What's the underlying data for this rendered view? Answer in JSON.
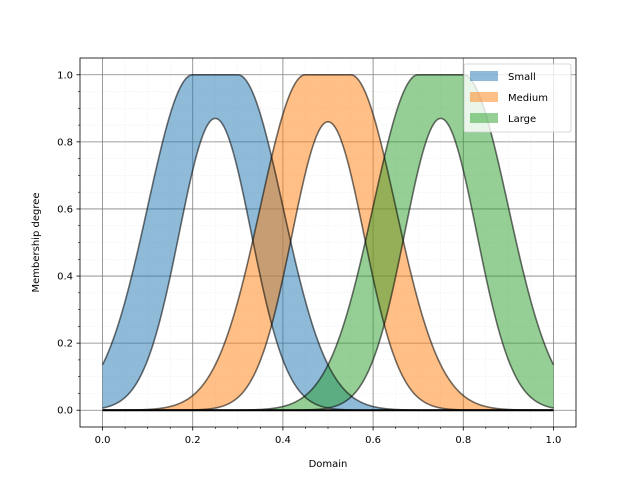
{
  "chart_data": {
    "type": "area",
    "xlabel": "Domain",
    "ylabel": "Membership degree",
    "xlim": [
      -0.05,
      1.05
    ],
    "ylim": [
      -0.05,
      1.05
    ],
    "xticks": [
      "0.0",
      "0.2",
      "0.4",
      "0.6",
      "0.8",
      "1.0"
    ],
    "yticks": [
      "0.0",
      "0.2",
      "0.4",
      "0.6",
      "0.8",
      "1.0"
    ],
    "grid": true,
    "legend_position": "top-right",
    "series": [
      {
        "name": "Small",
        "color": "#1f77b4",
        "upper": {
          "plateau": [
            0.2,
            0.3
          ],
          "sigma": 0.1
        },
        "lower": {
          "center": 0.25,
          "peak": 0.87,
          "sigma": 0.08
        }
      },
      {
        "name": "Medium",
        "color": "#ff7f0e",
        "upper": {
          "plateau": [
            0.45,
            0.55
          ],
          "sigma": 0.1
        },
        "lower": {
          "center": 0.5,
          "peak": 0.86,
          "sigma": 0.08
        }
      },
      {
        "name": "Large",
        "color": "#2ca02c",
        "upper": {
          "plateau": [
            0.7,
            0.8
          ],
          "sigma": 0.1
        },
        "lower": {
          "center": 0.75,
          "peak": 0.87,
          "sigma": 0.08
        }
      }
    ]
  }
}
